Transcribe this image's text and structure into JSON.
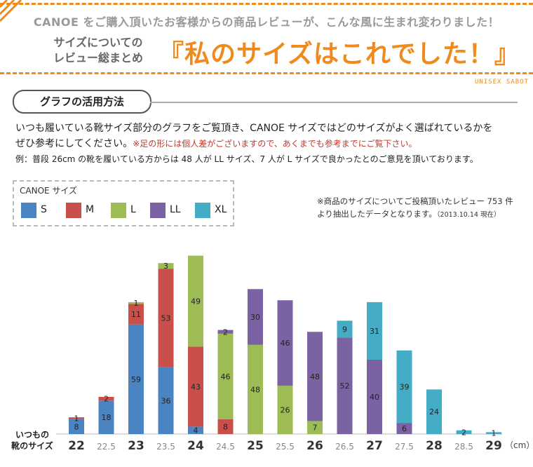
{
  "banner": {
    "intro": "CANOE をご購入頂いたお客様からの商品レビューが、こんな風に生まれ変わりました！",
    "summary_lines": [
      "サイズについての",
      "レビュー総まとめ"
    ],
    "catchphrase": "『私のサイズはこれでした！』",
    "brand": "UNISEX SABOT"
  },
  "guide": {
    "heading": "グラフの活用方法",
    "line1": "いつも履いている靴サイズ部分のグラフをご覧頂き、CANOE サイズではどのサイズがよく選ばれているかを",
    "line2": "ぜひ参考にしてください。",
    "note": "※足の形には個人差がございますので、あくまでも参考までにご覧下さい。",
    "example": "例：普段 26cm の靴を履いている方からは 48 人が LL サイズ、7 人が L サイズで良かったとのご意見を頂いております。"
  },
  "source_note": {
    "line1": "※商品のサイズについてご投稿頂いたレビュー 753 件",
    "line2": "より抽出したデータとなります。",
    "date": "（2013.10.14 現在）"
  },
  "colors": {
    "accent": "#f08a1c",
    "note_red": "#c0392b"
  },
  "chart_data": {
    "type": "bar",
    "stacked": true,
    "legend_title": "CANOE サイズ",
    "legend_position": "top-left",
    "xlabel": "いつもの靴のサイズ",
    "unit": "（cm）",
    "grid": false,
    "categories": [
      "22",
      "22.5",
      "23",
      "23.5",
      "24",
      "24.5",
      "25",
      "25.5",
      "26",
      "26.5",
      "27",
      "27.5",
      "28",
      "28.5",
      "29"
    ],
    "major_categories": [
      "22",
      "23",
      "24",
      "25",
      "26",
      "27",
      "28",
      "29"
    ],
    "series": [
      {
        "name": "S",
        "color": "#4a84c2",
        "values": [
          8,
          18,
          59,
          36,
          4,
          0,
          0,
          0,
          0,
          0,
          0,
          0,
          0,
          0,
          0
        ]
      },
      {
        "name": "M",
        "color": "#c9504a",
        "values": [
          1,
          2,
          11,
          53,
          43,
          8,
          0,
          0,
          0,
          0,
          0,
          0,
          0,
          0,
          0
        ]
      },
      {
        "name": "L",
        "color": "#9dbc56",
        "values": [
          0,
          0,
          1,
          3,
          49,
          46,
          48,
          26,
          7,
          0,
          0,
          0,
          0,
          0,
          0
        ]
      },
      {
        "name": "LL",
        "color": "#7b62a3",
        "values": [
          0,
          0,
          0,
          0,
          0,
          2,
          30,
          46,
          48,
          52,
          40,
          6,
          0,
          0,
          0
        ]
      },
      {
        "name": "XL",
        "color": "#44acc4",
        "values": [
          0,
          0,
          0,
          0,
          0,
          0,
          0,
          0,
          0,
          9,
          31,
          39,
          24,
          2,
          1
        ]
      }
    ],
    "ylim": [
      0,
      100
    ]
  }
}
